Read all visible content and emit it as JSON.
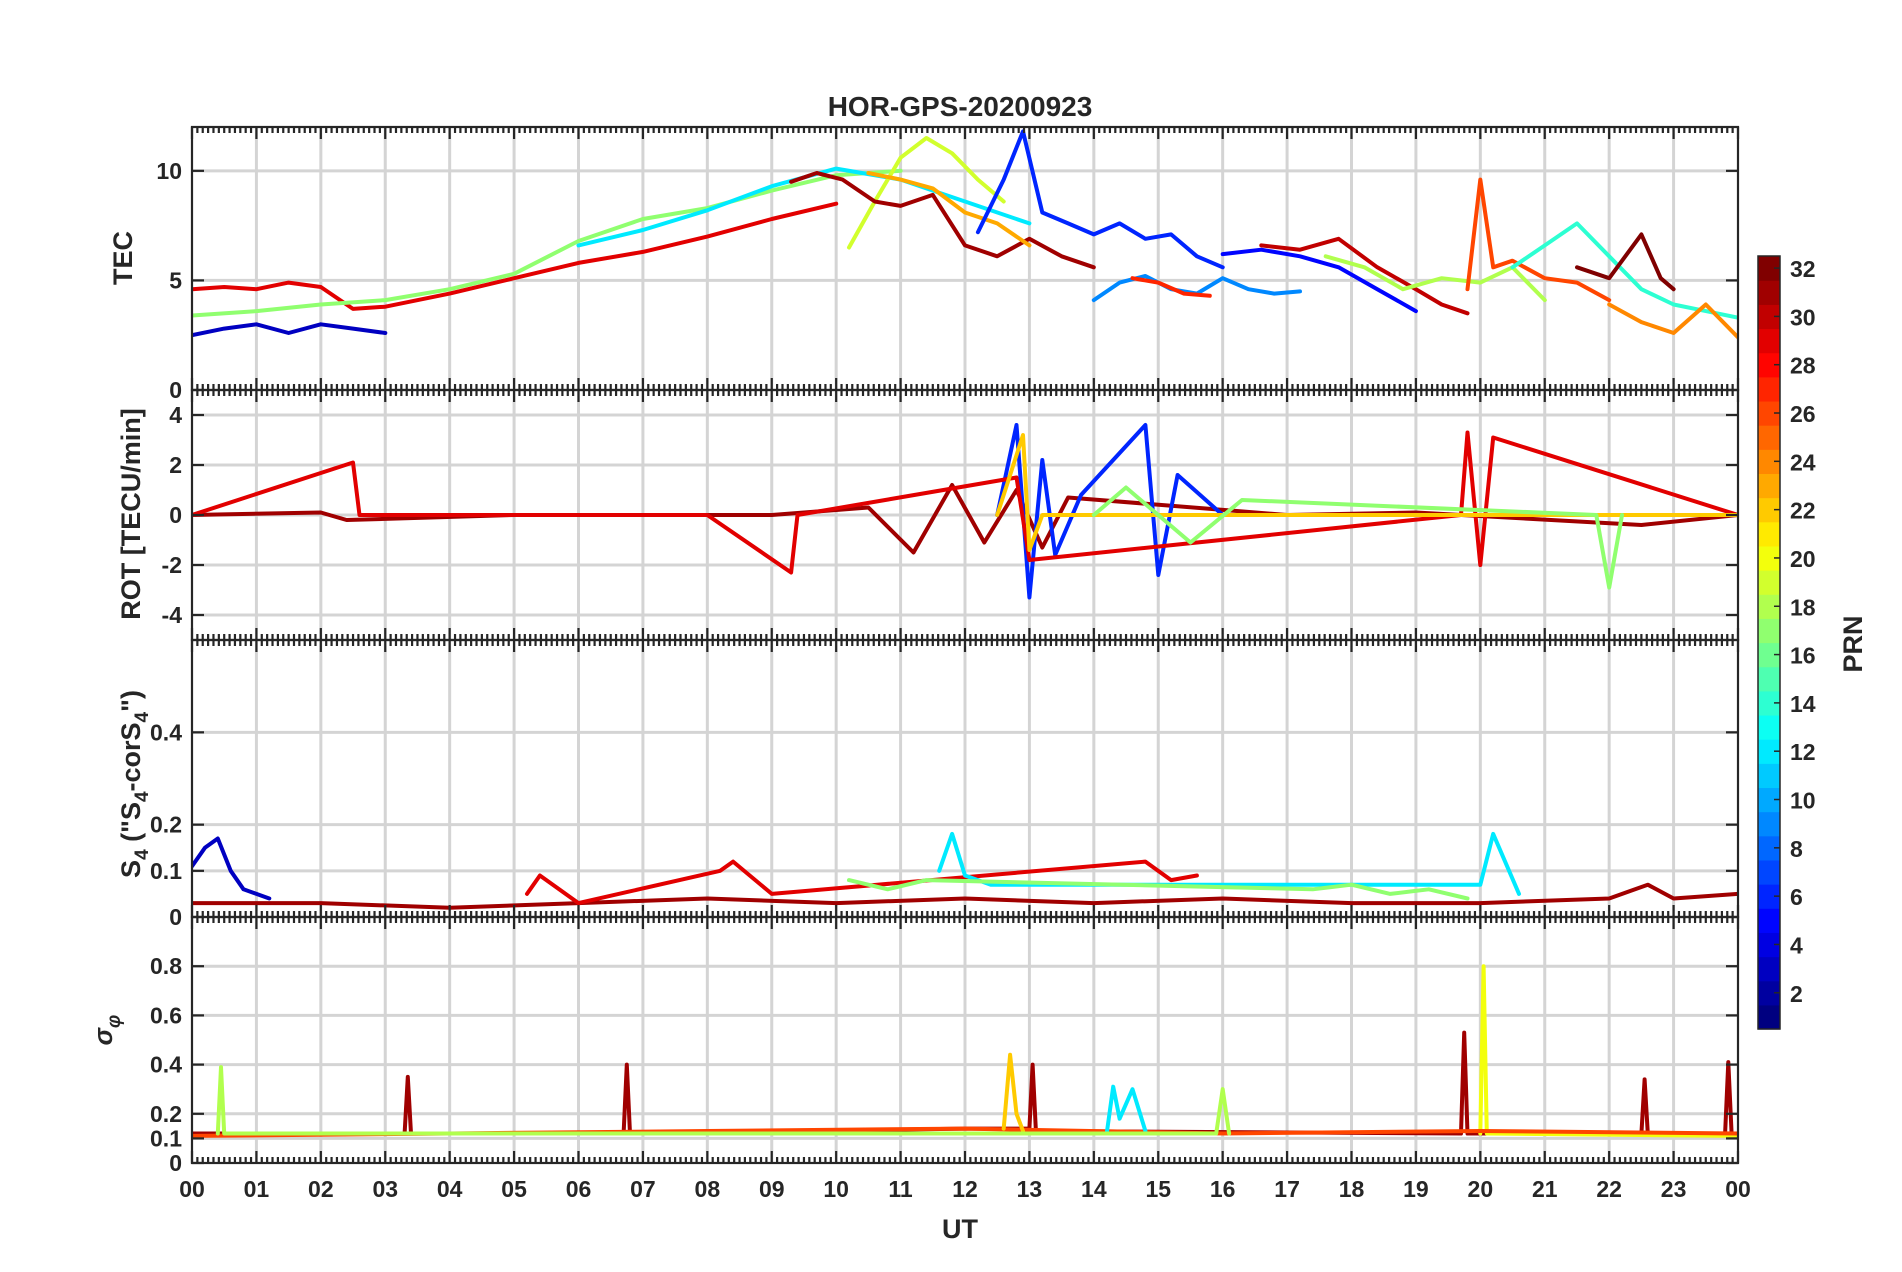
{
  "chart_data": {
    "type": "line",
    "title": "HOR-GPS-20200923",
    "xlabel": "UT",
    "x_range_hours": [
      0,
      24
    ],
    "x_tick_labels": [
      "00",
      "01",
      "02",
      "03",
      "04",
      "05",
      "06",
      "07",
      "08",
      "09",
      "10",
      "11",
      "12",
      "13",
      "14",
      "15",
      "16",
      "17",
      "18",
      "19",
      "20",
      "21",
      "22",
      "23",
      "00"
    ],
    "panels": [
      {
        "id": "tec",
        "ylabel": "TEC",
        "ylim": [
          0,
          12
        ],
        "ytick_values": [
          0,
          5,
          10
        ],
        "ytick_labels": [
          "0",
          "5",
          "10"
        ],
        "grid": true,
        "description": "Total electron content per PRN",
        "series": [
          {
            "name": "PRN 3",
            "prn": 3,
            "x": [
              0,
              0.5,
              1,
              1.5,
              2,
              2.5,
              3
            ],
            "y": [
              2.5,
              2.8,
              3.0,
              2.6,
              3.0,
              2.8,
              2.6
            ]
          },
          {
            "name": "PRN 29",
            "prn": 29,
            "x": [
              0,
              0.5,
              1,
              1.5,
              2,
              2.5,
              3,
              4,
              5,
              6,
              7,
              8,
              9,
              10
            ],
            "y": [
              4.6,
              4.7,
              4.6,
              4.9,
              4.7,
              3.7,
              3.8,
              4.4,
              5.1,
              5.8,
              6.3,
              7.0,
              7.8,
              8.5
            ]
          },
          {
            "name": "PRN 17",
            "prn": 17,
            "x": [
              0,
              1,
              2,
              3,
              4,
              5,
              6,
              7,
              8,
              9,
              10,
              11
            ],
            "y": [
              3.4,
              3.6,
              3.9,
              4.1,
              4.6,
              5.3,
              6.8,
              7.8,
              8.3,
              9.1,
              9.8,
              10.0
            ]
          },
          {
            "name": "PRN 12",
            "prn": 12,
            "x": [
              6,
              7,
              8,
              9,
              10,
              11,
              12,
              13
            ],
            "y": [
              6.6,
              7.3,
              8.2,
              9.3,
              10.1,
              9.6,
              8.6,
              7.6
            ]
          },
          {
            "name": "PRN 19",
            "prn": 19,
            "x": [
              10.2,
              10.6,
              11.0,
              11.4,
              11.8,
              12.2,
              12.6
            ],
            "y": [
              6.5,
              8.6,
              10.6,
              11.5,
              10.8,
              9.6,
              8.6
            ]
          },
          {
            "name": "PRN 31",
            "prn": 31,
            "x": [
              9.3,
              9.7,
              10.1,
              10.6,
              11.0,
              11.5,
              12.0,
              12.5,
              13.0,
              13.5,
              14.0
            ],
            "y": [
              9.5,
              9.9,
              9.6,
              8.6,
              8.4,
              8.9,
              6.6,
              6.1,
              6.9,
              6.1,
              5.6
            ]
          },
          {
            "name": "PRN 23",
            "prn": 23,
            "x": [
              10.5,
              11.0,
              11.5,
              12.0,
              12.5,
              13.0
            ],
            "y": [
              9.9,
              9.6,
              9.2,
              8.1,
              7.6,
              6.6
            ]
          },
          {
            "name": "PRN 6",
            "prn": 6,
            "x": [
              12.2,
              12.6,
              12.9,
              13.2,
              13.6,
              14.0,
              14.4,
              14.8,
              15.2,
              15.6,
              16.0
            ],
            "y": [
              7.2,
              9.6,
              11.8,
              8.1,
              7.6,
              7.1,
              7.6,
              6.9,
              7.1,
              6.1,
              5.6
            ]
          },
          {
            "name": "PRN 9",
            "prn": 9,
            "x": [
              14.0,
              14.4,
              14.8,
              15.2,
              15.6,
              16.0,
              16.4,
              16.8,
              17.2
            ],
            "y": [
              4.1,
              4.9,
              5.2,
              4.6,
              4.4,
              5.1,
              4.6,
              4.4,
              4.5
            ]
          },
          {
            "name": "PRN 27",
            "prn": 27,
            "x": [
              14.6,
              15.0,
              15.4,
              15.8
            ],
            "y": [
              5.1,
              4.9,
              4.4,
              4.3
            ]
          },
          {
            "name": "PRN 5",
            "prn": 5,
            "x": [
              16.0,
              16.6,
              17.2,
              17.8,
              18.4,
              19.0
            ],
            "y": [
              6.2,
              6.4,
              6.1,
              5.6,
              4.6,
              3.6
            ]
          },
          {
            "name": "PRN 30",
            "prn": 30,
            "x": [
              16.6,
              17.2,
              17.8,
              18.4,
              19.0,
              19.4,
              19.8
            ],
            "y": [
              6.6,
              6.4,
              6.9,
              5.6,
              4.6,
              3.9,
              3.5
            ]
          },
          {
            "name": "PRN 18",
            "prn": 18,
            "x": [
              17.6,
              18.2,
              18.8,
              19.4,
              20.0,
              20.5,
              21.0
            ],
            "y": [
              6.1,
              5.6,
              4.6,
              5.1,
              4.9,
              5.6,
              4.1
            ]
          },
          {
            "name": "PRN 26",
            "prn": 26,
            "x": [
              19.8,
              20.0,
              20.2,
              20.5,
              21.0,
              21.5,
              22.0
            ],
            "y": [
              4.6,
              9.6,
              5.6,
              5.9,
              5.1,
              4.9,
              4.1
            ]
          },
          {
            "name": "PRN 14",
            "prn": 14,
            "x": [
              20.5,
              21.0,
              21.5,
              22.0,
              22.5,
              23.0,
              23.5,
              24.0
            ],
            "y": [
              5.6,
              6.6,
              7.6,
              6.1,
              4.6,
              3.9,
              3.6,
              3.3
            ]
          },
          {
            "name": "PRN 32",
            "prn": 32,
            "x": [
              21.5,
              22.0,
              22.5,
              22.8,
              23.0
            ],
            "y": [
              5.6,
              5.1,
              7.1,
              5.1,
              4.6
            ]
          },
          {
            "name": "PRN 24",
            "prn": 24,
            "x": [
              22.0,
              22.5,
              23.0,
              23.5,
              24.0
            ],
            "y": [
              3.9,
              3.1,
              2.6,
              3.9,
              2.4
            ]
          }
        ]
      },
      {
        "id": "rot",
        "ylabel": "ROT [TECU/min]",
        "ylim": [
          -5,
          5
        ],
        "ytick_values": [
          -4,
          -2,
          0,
          2,
          4
        ],
        "ytick_labels": [
          "-4",
          "-2",
          "0",
          "2",
          "4"
        ],
        "grid": true,
        "description": "Rate of TEC per PRN, near zero with bursts around 11-16 UT and 19.8-20.5 UT",
        "series": [
          {
            "name": "PRN 31",
            "prn": 31,
            "x": [
              0,
              2,
              2.4,
              5,
              9,
              10.5,
              11.2,
              11.8,
              12.3,
              12.8,
              13.2,
              13.6,
              17,
              19,
              22.5,
              24
            ],
            "y": [
              0,
              0.1,
              -0.2,
              0,
              0,
              0.3,
              -1.5,
              1.2,
              -1.1,
              1.0,
              -1.3,
              0.7,
              0,
              0.1,
              -0.4,
              0
            ]
          },
          {
            "name": "PRN 6",
            "prn": 6,
            "x": [
              12.5,
              12.8,
              13.0,
              13.2,
              13.4,
              13.8,
              14.8,
              15.0,
              15.3,
              16.0
            ],
            "y": [
              0,
              3.6,
              -3.3,
              2.2,
              -1.6,
              0.8,
              3.6,
              -2.4,
              1.6,
              0
            ]
          },
          {
            "name": "PRN 29",
            "prn": 29,
            "x": [
              0,
              2.5,
              2.6,
              8,
              9.3,
              9.4,
              12.8,
              13.0,
              19.7,
              19.8,
              20.0,
              20.2,
              24
            ],
            "y": [
              0,
              2.1,
              0,
              0,
              -2.3,
              0,
              1.5,
              -1.8,
              0,
              3.3,
              -2.0,
              3.1,
              0
            ]
          },
          {
            "name": "PRN 22",
            "prn": 22,
            "x": [
              12.5,
              12.9,
              13.0,
              13.2,
              24
            ],
            "y": [
              0,
              3.2,
              -1.4,
              0,
              0
            ]
          },
          {
            "name": "PRN 17",
            "prn": 17,
            "x": [
              14.0,
              14.5,
              15.5,
              16.3,
              21.8,
              22.0,
              22.2
            ],
            "y": [
              0,
              1.1,
              -1.1,
              0.6,
              0,
              -2.9,
              0
            ]
          }
        ]
      },
      {
        "id": "s4",
        "ylabel": "S4 (\"S4-corS4\")",
        "ylabel_main": "S",
        "ylabel_sub": "4",
        "ylabel_rest_prefix": " (\"S",
        "ylabel_rest_sub": "4",
        "ylabel_rest_mid": "-corS",
        "ylabel_rest_sub2": "4",
        "ylabel_rest_suffix": "\")",
        "ylim": [
          0,
          0.6
        ],
        "ytick_values": [
          0,
          0.1,
          0.2,
          0.4
        ],
        "ytick_labels": [
          "0",
          "0.1",
          "0.2",
          "0.4"
        ],
        "grid": true,
        "description": "Amplitude scintillation index, mostly 0.02-0.1",
        "series": [
          {
            "name": "PRN 3",
            "prn": 3,
            "x": [
              0,
              0.2,
              0.4,
              0.6,
              0.8,
              1.2
            ],
            "y": [
              0.11,
              0.15,
              0.17,
              0.1,
              0.06,
              0.04
            ]
          },
          {
            "name": "PRN 31",
            "prn": 31,
            "x": [
              0,
              2,
              4,
              6,
              8,
              10,
              12,
              14,
              16,
              18,
              20,
              22,
              22.6,
              23,
              24
            ],
            "y": [
              0.03,
              0.03,
              0.02,
              0.03,
              0.04,
              0.03,
              0.04,
              0.03,
              0.04,
              0.03,
              0.03,
              0.04,
              0.07,
              0.04,
              0.05
            ]
          },
          {
            "name": "PRN 29",
            "prn": 29,
            "x": [
              5.2,
              5.4,
              6.0,
              8.2,
              8.4,
              9.0,
              14.8,
              15.2,
              15.6
            ],
            "y": [
              0.05,
              0.09,
              0.03,
              0.1,
              0.12,
              0.05,
              0.12,
              0.08,
              0.09
            ]
          },
          {
            "name": "PRN 12",
            "prn": 12,
            "x": [
              11.6,
              11.8,
              12.0,
              12.4,
              20.0,
              20.2,
              20.6
            ],
            "y": [
              0.1,
              0.18,
              0.09,
              0.07,
              0.07,
              0.18,
              0.05
            ]
          },
          {
            "name": "PRN 17",
            "prn": 17,
            "x": [
              10.2,
              10.8,
              11.4,
              17.4,
              18.0,
              18.6,
              19.2,
              19.8
            ],
            "y": [
              0.08,
              0.06,
              0.08,
              0.06,
              0.07,
              0.05,
              0.06,
              0.04
            ]
          }
        ]
      },
      {
        "id": "sigma_phi",
        "ylabel": "σφ",
        "ylabel_main": "σ",
        "ylabel_sub": "φ",
        "ylim": [
          0,
          1.0
        ],
        "ytick_values": [
          0,
          0.1,
          0.2,
          0.4,
          0.6,
          0.8
        ],
        "ytick_labels": [
          "0",
          "0.1",
          "0.2",
          "0.4",
          "0.6",
          "0.8"
        ],
        "grid": true,
        "description": "Phase scintillation index, mostly ~0.1-0.15 with spikes",
        "series": [
          {
            "name": "PRN 31",
            "prn": 31,
            "x": [
              0,
              3.3,
              3.35,
              3.4,
              6.7,
              6.75,
              6.8,
              12,
              13.0,
              13.05,
              13.1,
              19.7,
              19.75,
              19.8,
              22.5,
              22.55,
              22.6,
              23.8,
              23.85,
              23.9,
              24
            ],
            "y": [
              0.12,
              0.12,
              0.35,
              0.12,
              0.12,
              0.4,
              0.12,
              0.14,
              0.14,
              0.4,
              0.13,
              0.12,
              0.53,
              0.12,
              0.12,
              0.34,
              0.12,
              0.12,
              0.41,
              0.12,
              0.12
            ]
          },
          {
            "name": "PRN 20",
            "prn": 20,
            "x": [
              20.0,
              20.05,
              20.1,
              24
            ],
            "y": [
              0.12,
              0.8,
              0.12,
              0.11
            ]
          },
          {
            "name": "PRN 26",
            "prn": 26,
            "x": [
              0,
              4,
              8,
              12,
              16,
              20,
              24
            ],
            "y": [
              0.11,
              0.12,
              0.13,
              0.14,
              0.12,
              0.13,
              0.12
            ]
          },
          {
            "name": "PRN 22",
            "prn": 22,
            "x": [
              12.6,
              12.7,
              12.8,
              12.9
            ],
            "y": [
              0.14,
              0.44,
              0.2,
              0.13
            ]
          },
          {
            "name": "PRN 12",
            "prn": 12,
            "x": [
              14.2,
              14.3,
              14.4,
              14.6,
              14.8
            ],
            "y": [
              0.12,
              0.31,
              0.18,
              0.3,
              0.13
            ]
          },
          {
            "name": "PRN 18",
            "prn": 18,
            "x": [
              0.4,
              0.45,
              0.5,
              15.9,
              16.0,
              16.1
            ],
            "y": [
              0.12,
              0.39,
              0.12,
              0.12,
              0.3,
              0.12
            ]
          }
        ]
      }
    ],
    "colorbar": {
      "label": "PRN",
      "range": [
        1,
        32
      ],
      "tick_values": [
        2,
        4,
        6,
        8,
        10,
        12,
        14,
        16,
        18,
        20,
        22,
        24,
        26,
        28,
        30,
        32
      ],
      "tick_labels": [
        "2",
        "4",
        "6",
        "8",
        "10",
        "12",
        "14",
        "16",
        "18",
        "20",
        "22",
        "24",
        "26",
        "28",
        "30",
        "32"
      ],
      "colormap": "jet"
    }
  }
}
